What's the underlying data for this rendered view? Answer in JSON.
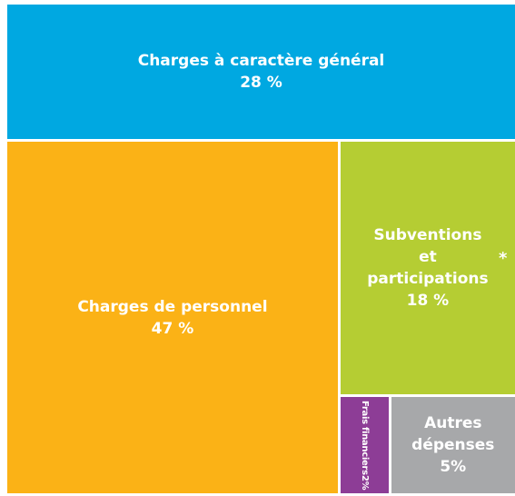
{
  "chart_data": {
    "type": "treemap",
    "categories": [
      "Charges à caractère général",
      "Charges de personnel",
      "Subventions et participations",
      "Frais financiers",
      "Autres dépenses"
    ],
    "values": [
      28,
      47,
      18,
      2,
      5
    ],
    "value_labels": [
      "28 %",
      "47 %",
      "18 %",
      "2%",
      "5%"
    ],
    "colors": [
      "#00a8e1",
      "#fbb216",
      "#b5cd33",
      "#8d3d96",
      "#a7a8aa"
    ],
    "annotation": "*"
  }
}
